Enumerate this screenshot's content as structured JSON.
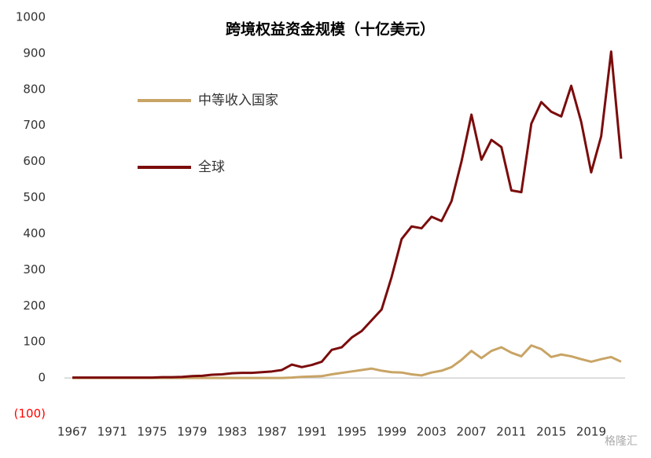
{
  "chart_data": {
    "type": "line",
    "title": "跨境权益资金规模（十亿美元）",
    "x": [
      1967,
      1968,
      1969,
      1970,
      1971,
      1972,
      1973,
      1974,
      1975,
      1976,
      1977,
      1978,
      1979,
      1980,
      1981,
      1982,
      1983,
      1984,
      1985,
      1986,
      1987,
      1988,
      1989,
      1990,
      1991,
      1992,
      1993,
      1994,
      1995,
      1996,
      1997,
      1998,
      1999,
      2000,
      2001,
      2002,
      2003,
      2004,
      2005,
      2006,
      2007,
      2008,
      2009,
      2010,
      2011,
      2012,
      2013,
      2014,
      2015,
      2016,
      2017,
      2018,
      2019,
      2020,
      2021,
      2022
    ],
    "series": [
      {
        "name": "中等收入国家",
        "color": "#c8a465",
        "values": [
          0,
          0,
          0,
          0,
          0,
          0,
          0,
          0,
          0,
          0,
          0,
          0,
          0,
          0,
          0,
          0,
          0,
          0,
          0,
          0,
          0,
          0,
          1,
          3,
          4,
          5,
          10,
          14,
          18,
          22,
          26,
          20,
          16,
          15,
          10,
          7,
          15,
          20,
          30,
          50,
          75,
          55,
          75,
          85,
          70,
          60,
          90,
          80,
          58,
          65,
          60,
          52,
          45,
          52,
          58,
          45
        ]
      },
      {
        "name": "全球",
        "color": "#7b0c0c",
        "values": [
          1,
          1,
          1,
          1,
          1,
          1,
          1,
          1,
          1,
          2,
          2,
          3,
          5,
          6,
          9,
          10,
          13,
          14,
          14,
          16,
          18,
          22,
          37,
          30,
          36,
          45,
          78,
          85,
          112,
          130,
          160,
          190,
          280,
          385,
          420,
          415,
          447,
          435,
          490,
          600,
          730,
          605,
          660,
          640,
          520,
          515,
          705,
          765,
          738,
          725,
          810,
          710,
          570,
          670,
          905,
          608
        ]
      }
    ],
    "xlim": [
      1967,
      2022
    ],
    "xticks": [
      1967,
      1971,
      1975,
      1979,
      1983,
      1987,
      1991,
      1995,
      1999,
      2003,
      2007,
      2011,
      2015,
      2019
    ],
    "ylim": [
      -100,
      1000
    ],
    "yticks": [
      {
        "value": -100,
        "label": "(100)"
      },
      0,
      100,
      200,
      300,
      400,
      500,
      600,
      700,
      800,
      900,
      1000
    ],
    "negative_tick_color": "#ff0000",
    "grid": false,
    "legend": "upper left",
    "watermark": "格隆汇"
  }
}
